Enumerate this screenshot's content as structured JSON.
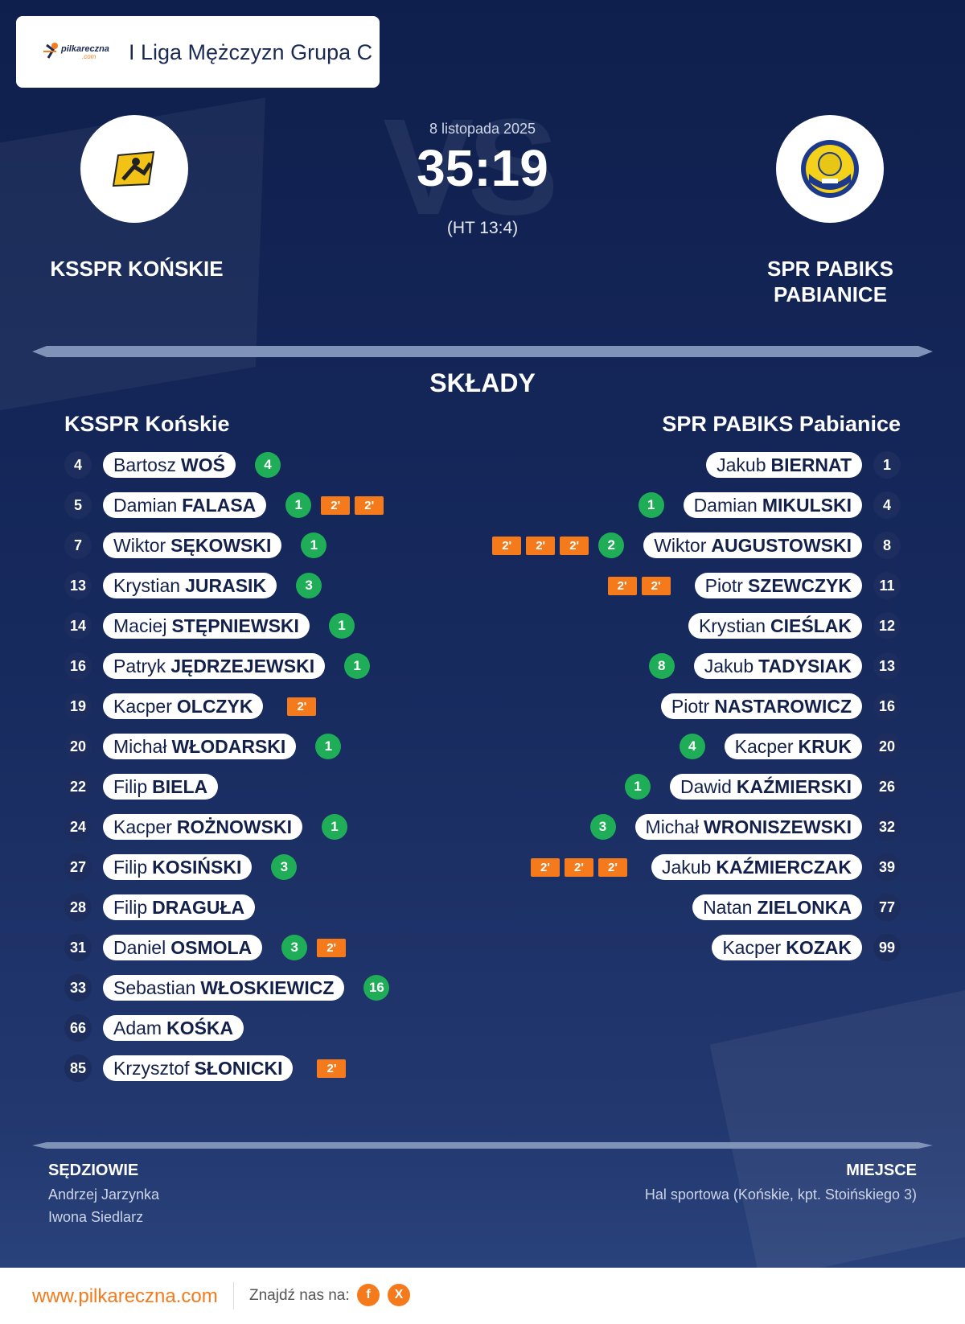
{
  "header": {
    "brand": "pilkareczna",
    "brand_sub": ".com",
    "league": "I Liga Mężczyzn Grupa C"
  },
  "match": {
    "date": "8 listopada 2025",
    "score": "35:19",
    "halftime": "(HT 13:4)",
    "vs_watermark": "VS",
    "home_team": "KSSPR KOŃSKIE",
    "away_team": "SPR PABIKS PABIANICE"
  },
  "lineups": {
    "title": "SKŁADY",
    "home": {
      "name": "KSSPR Końskie",
      "players": [
        {
          "num": "4",
          "first": "Bartosz",
          "last": "WOŚ",
          "goals": "4",
          "suspensions": []
        },
        {
          "num": "5",
          "first": "Damian",
          "last": "FALASA",
          "goals": "1",
          "suspensions": [
            "2'",
            "2'"
          ]
        },
        {
          "num": "7",
          "first": "Wiktor",
          "last": "SĘKOWSKI",
          "goals": "1",
          "suspensions": []
        },
        {
          "num": "13",
          "first": "Krystian",
          "last": "JURASIK",
          "goals": "3",
          "suspensions": []
        },
        {
          "num": "14",
          "first": "Maciej",
          "last": "STĘPNIEWSKI",
          "goals": "1",
          "suspensions": []
        },
        {
          "num": "16",
          "first": "Patryk",
          "last": "JĘDRZEJEWSKI",
          "goals": "1",
          "suspensions": []
        },
        {
          "num": "19",
          "first": "Kacper",
          "last": "OLCZYK",
          "goals": "",
          "suspensions": [
            "2'"
          ]
        },
        {
          "num": "20",
          "first": "Michał",
          "last": "WŁODARSKI",
          "goals": "1",
          "suspensions": []
        },
        {
          "num": "22",
          "first": "Filip",
          "last": "BIELA",
          "goals": "",
          "suspensions": []
        },
        {
          "num": "24",
          "first": "Kacper",
          "last": "ROŻNOWSKI",
          "goals": "1",
          "suspensions": []
        },
        {
          "num": "27",
          "first": "Filip",
          "last": "KOSIŃSKI",
          "goals": "3",
          "suspensions": []
        },
        {
          "num": "28",
          "first": "Filip",
          "last": "DRAGUŁA",
          "goals": "",
          "suspensions": []
        },
        {
          "num": "31",
          "first": "Daniel",
          "last": "OSMOLA",
          "goals": "3",
          "suspensions": [
            "2'"
          ]
        },
        {
          "num": "33",
          "first": "Sebastian",
          "last": "WŁOSKIEWICZ",
          "goals": "16",
          "suspensions": []
        },
        {
          "num": "66",
          "first": "Adam",
          "last": "KOŚKA",
          "goals": "",
          "suspensions": []
        },
        {
          "num": "85",
          "first": "Krzysztof",
          "last": "SŁONICKI",
          "goals": "",
          "suspensions": [
            "2'"
          ]
        }
      ]
    },
    "away": {
      "name": "SPR PABIKS Pabianice",
      "players": [
        {
          "num": "1",
          "first": "Jakub",
          "last": "BIERNAT",
          "goals": "",
          "suspensions": []
        },
        {
          "num": "4",
          "first": "Damian",
          "last": "MIKULSKI",
          "goals": "1",
          "suspensions": []
        },
        {
          "num": "8",
          "first": "Wiktor",
          "last": "AUGUSTOWSKI",
          "goals": "2",
          "suspensions": [
            "2'",
            "2'",
            "2'"
          ]
        },
        {
          "num": "11",
          "first": "Piotr",
          "last": "SZEWCZYK",
          "goals": "",
          "suspensions": [
            "2'",
            "2'"
          ]
        },
        {
          "num": "12",
          "first": "Krystian",
          "last": "CIEŚLAK",
          "goals": "",
          "suspensions": []
        },
        {
          "num": "13",
          "first": "Jakub",
          "last": "TADYSIAK",
          "goals": "8",
          "suspensions": []
        },
        {
          "num": "16",
          "first": "Piotr",
          "last": "NASTAROWICZ",
          "goals": "",
          "suspensions": []
        },
        {
          "num": "20",
          "first": "Kacper",
          "last": "KRUK",
          "goals": "4",
          "suspensions": []
        },
        {
          "num": "26",
          "first": "Dawid",
          "last": "KAŹMIERSKI",
          "goals": "1",
          "suspensions": []
        },
        {
          "num": "32",
          "first": "Michał",
          "last": "WRONISZEWSKI",
          "goals": "3",
          "suspensions": []
        },
        {
          "num": "39",
          "first": "Jakub",
          "last": "KAŹMIERCZAK",
          "goals": "",
          "suspensions": [
            "2'",
            "2'",
            "2'"
          ]
        },
        {
          "num": "77",
          "first": "Natan",
          "last": "ZIELONKA",
          "goals": "",
          "suspensions": []
        },
        {
          "num": "99",
          "first": "Kacper",
          "last": "KOZAK",
          "goals": "",
          "suspensions": []
        }
      ]
    }
  },
  "referees": {
    "label": "SĘDZIOWIE",
    "names": [
      "Andrzej Jarzynka",
      "Iwona Siedlarz"
    ]
  },
  "venue": {
    "label": "MIEJSCE",
    "text": "Hal sportowa (Końskie, kpt. Stoińskiego 3)"
  },
  "footer": {
    "site": "www.pilkareczna.com",
    "find_us": "Znajdź nas na:",
    "social": [
      {
        "icon": "facebook-icon",
        "glyph": "f"
      },
      {
        "icon": "x-icon",
        "glyph": "X"
      }
    ]
  },
  "colors": {
    "background": "#14244f",
    "goal_badge": "#1fae57",
    "suspension_badge": "#f47a1c",
    "accent": "#f47a1c"
  }
}
